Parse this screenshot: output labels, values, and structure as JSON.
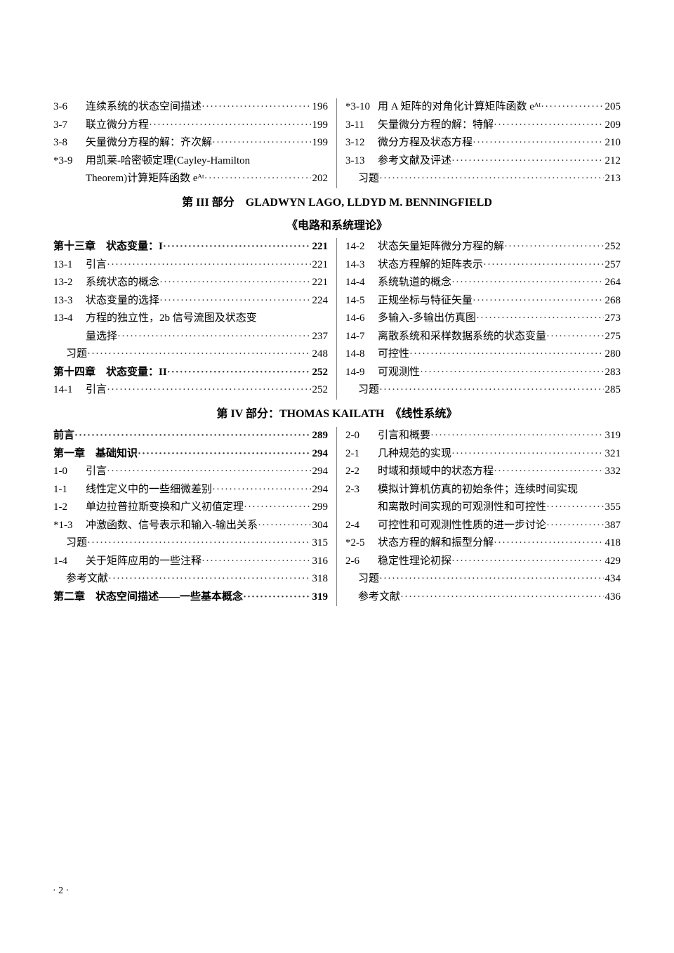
{
  "block1": {
    "left": [
      {
        "num": "3-6",
        "title": "连续系统的状态空间描述",
        "page": "196"
      },
      {
        "num": "3-7",
        "title": "联立微分方程",
        "page": "199"
      },
      {
        "num": "3-8",
        "title": "矢量微分方程的解：齐次解",
        "page": "199"
      },
      {
        "num": "*3-9",
        "title": "用凯莱-哈密顿定理(Cayley-Hamilton",
        "page": ""
      },
      {
        "num": "",
        "title": "Theorem)计算矩阵函数 eᴬᵗ",
        "page": "202",
        "cont": true
      }
    ],
    "right": [
      {
        "num": "*3-10",
        "title": "用 A 矩阵的对角化计算矩阵函数 eᴬᵗ",
        "page": "205"
      },
      {
        "num": "3-11",
        "title": "矢量微分方程的解：特解",
        "page": "209"
      },
      {
        "num": "3-12",
        "title": "微分方程及状态方程",
        "page": "210"
      },
      {
        "num": "3-13",
        "title": "参考文献及评述",
        "page": "212"
      },
      {
        "num": "",
        "title": "习题",
        "page": "213",
        "noindent": true
      }
    ]
  },
  "heading3_line1": "第 III 部分　GLADWYN LAGO,  LLDYD M.  BENNINGFIELD",
  "heading3_line2": "《电路和系统理论》",
  "block2": {
    "left": [
      {
        "num": "",
        "title": "第十三章　状态变量：I",
        "page": "221",
        "chapter": true
      },
      {
        "num": "13-1",
        "title": "引言",
        "page": "221"
      },
      {
        "num": "13-2",
        "title": "系统状态的概念",
        "page": "221"
      },
      {
        "num": "13-3",
        "title": "状态变量的选择",
        "page": "224"
      },
      {
        "num": "13-4",
        "title": "方程的独立性，2b 信号流图及状态变",
        "page": ""
      },
      {
        "num": "",
        "title": "量选择",
        "page": "237",
        "cont": true
      },
      {
        "num": "",
        "title": "习题",
        "page": "248",
        "noindent": true
      },
      {
        "num": "",
        "title": "第十四章　状态变量：II",
        "page": "252",
        "chapter": true
      },
      {
        "num": "14-1",
        "title": "引言",
        "page": "252"
      }
    ],
    "right": [
      {
        "num": "14-2",
        "title": "状态矢量矩阵微分方程的解",
        "page": "252"
      },
      {
        "num": "14-3",
        "title": "状态方程解的矩阵表示",
        "page": "257"
      },
      {
        "num": "14-4",
        "title": "系统轨道的概念",
        "page": "264"
      },
      {
        "num": "14-5",
        "title": "正规坐标与特征矢量",
        "page": "268"
      },
      {
        "num": "14-6",
        "title": "多输入-多输出仿真图",
        "page": "273"
      },
      {
        "num": "14-7",
        "title": "离散系统和采样数据系统的状态变量",
        "page": "275"
      },
      {
        "num": "14-8",
        "title": "可控性",
        "page": "280"
      },
      {
        "num": "14-9",
        "title": "可观测性",
        "page": "283"
      },
      {
        "num": "",
        "title": "习题",
        "page": "285",
        "noindent": true
      }
    ]
  },
  "heading4": "第 IV 部分：THOMAS KAILATH　《线性系统》",
  "block3": {
    "left": [
      {
        "num": "",
        "title": "前言",
        "page": "289",
        "chapter": true,
        "flush": true
      },
      {
        "num": "",
        "title": "第一章　基础知识",
        "page": "294",
        "chapter": true
      },
      {
        "num": "1-0",
        "title": "引言",
        "page": "294"
      },
      {
        "num": "1-1",
        "title": "线性定义中的一些细微差别",
        "page": "294"
      },
      {
        "num": "1-2",
        "title": "单边拉普拉斯变换和广义初值定理",
        "page": "299"
      },
      {
        "num": "*1-3",
        "title": "冲激函数、信号表示和输入-输出关系",
        "page": "304"
      },
      {
        "num": "",
        "title": "习题",
        "page": "315",
        "noindent": true
      },
      {
        "num": "1-4",
        "title": "关于矩阵应用的一些注释",
        "page": "316"
      },
      {
        "num": "",
        "title": "参考文献",
        "page": "318",
        "noindent": true
      },
      {
        "num": "",
        "title": "第二章　状态空间描述——一些基本概念",
        "page": "319",
        "chapter": true
      }
    ],
    "right": [
      {
        "num": "2-0",
        "title": "引言和概要",
        "page": "319"
      },
      {
        "num": "2-1",
        "title": "几种规范的实现",
        "page": "321"
      },
      {
        "num": "2-2",
        "title": "时域和频域中的状态方程",
        "page": "332"
      },
      {
        "num": "2-3",
        "title": "模拟计算机仿真的初始条件；连续时间实现",
        "page": ""
      },
      {
        "num": "",
        "title": "和离散时间实现的可观测性和可控性",
        "page": "355",
        "cont": true
      },
      {
        "num": "2-4",
        "title": "可控性和可观测性性质的进一步讨论",
        "page": "387"
      },
      {
        "num": "*2-5",
        "title": "状态方程的解和振型分解",
        "page": "418"
      },
      {
        "num": "2-6",
        "title": "稳定性理论初探",
        "page": "429"
      },
      {
        "num": "",
        "title": "习题",
        "page": "434",
        "noindent": true
      },
      {
        "num": "",
        "title": "参考文献",
        "page": "436",
        "noindent": true
      }
    ]
  },
  "page_number": "· 2 ·"
}
